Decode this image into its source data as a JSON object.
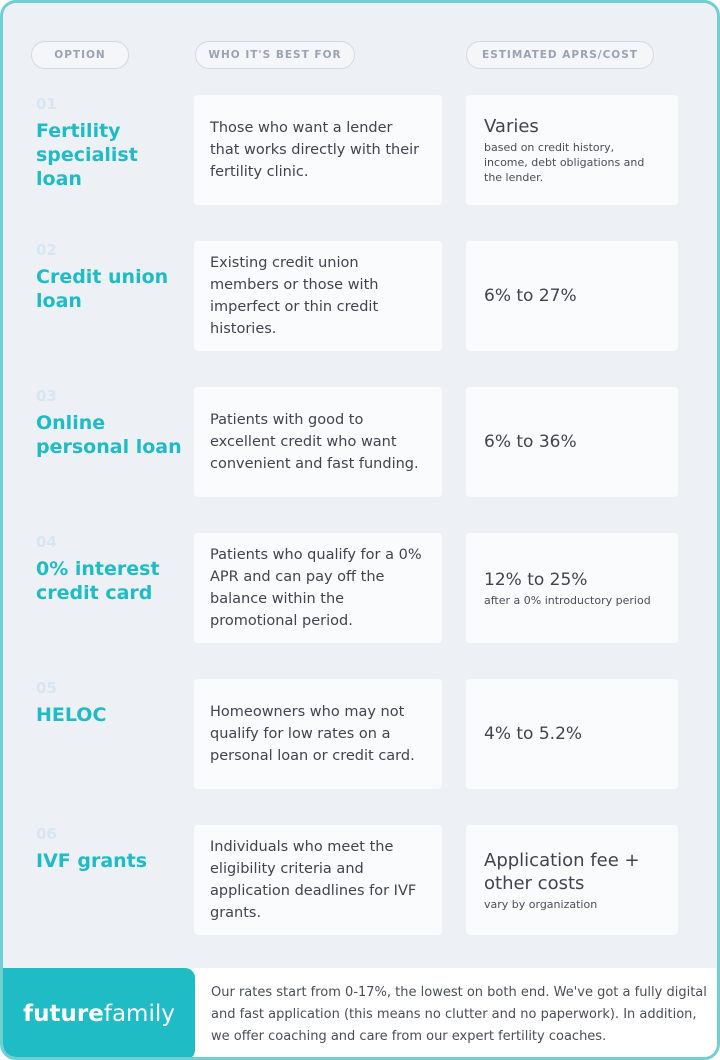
{
  "header": {
    "col1": "OPTION",
    "col2": "WHO IT'S BEST FOR",
    "col3": "ESTIMATED APRS/COST"
  },
  "rows": [
    {
      "num": "01",
      "title": "Fertility specialist loan",
      "best_for": "Those who want a lender that works directly with their fertility clinic.",
      "cost_main": "Varies",
      "cost_sub": "based on credit history, income, debt obligations and the lender."
    },
    {
      "num": "02",
      "title": "Credit union loan",
      "best_for": "Existing credit union members or those with imperfect or thin credit histories.",
      "cost_main": "6% to 27%",
      "cost_sub": ""
    },
    {
      "num": "03",
      "title": "Online personal loan",
      "best_for": "Patients with good to excellent credit who want convenient and fast funding.",
      "cost_main": "6% to 36%",
      "cost_sub": ""
    },
    {
      "num": "04",
      "title": "0% interest credit card",
      "best_for": "Patients who qualify for a 0% APR and can pay off the balance within the promotional period.",
      "cost_main": "12% to 25%",
      "cost_sub": "after a 0% introductory period"
    },
    {
      "num": "05",
      "title": "HELOC",
      "best_for": "Homeowners who may not qualify for low rates on a personal loan or credit card.",
      "cost_main": "4% to 5.2%",
      "cost_sub": ""
    },
    {
      "num": "06",
      "title": "IVF grants",
      "best_for": "Individuals who meet the eligibility criteria and application deadlines for IVF grants.",
      "cost_main": "Application fee + other costs",
      "cost_sub": "vary by organization"
    }
  ],
  "footer": {
    "logo_bold": "future",
    "logo_light": "family",
    "text": "Our rates start from 0-17%, the lowest on both end. We've got a fully digital and fast application (this means no clutter and no paperwork). In addition, we offer coaching and care from our expert fertility coaches."
  },
  "colors": {
    "accent": "#1fbcc6",
    "border": "#6fcfd1",
    "background": "#edf0f5"
  }
}
